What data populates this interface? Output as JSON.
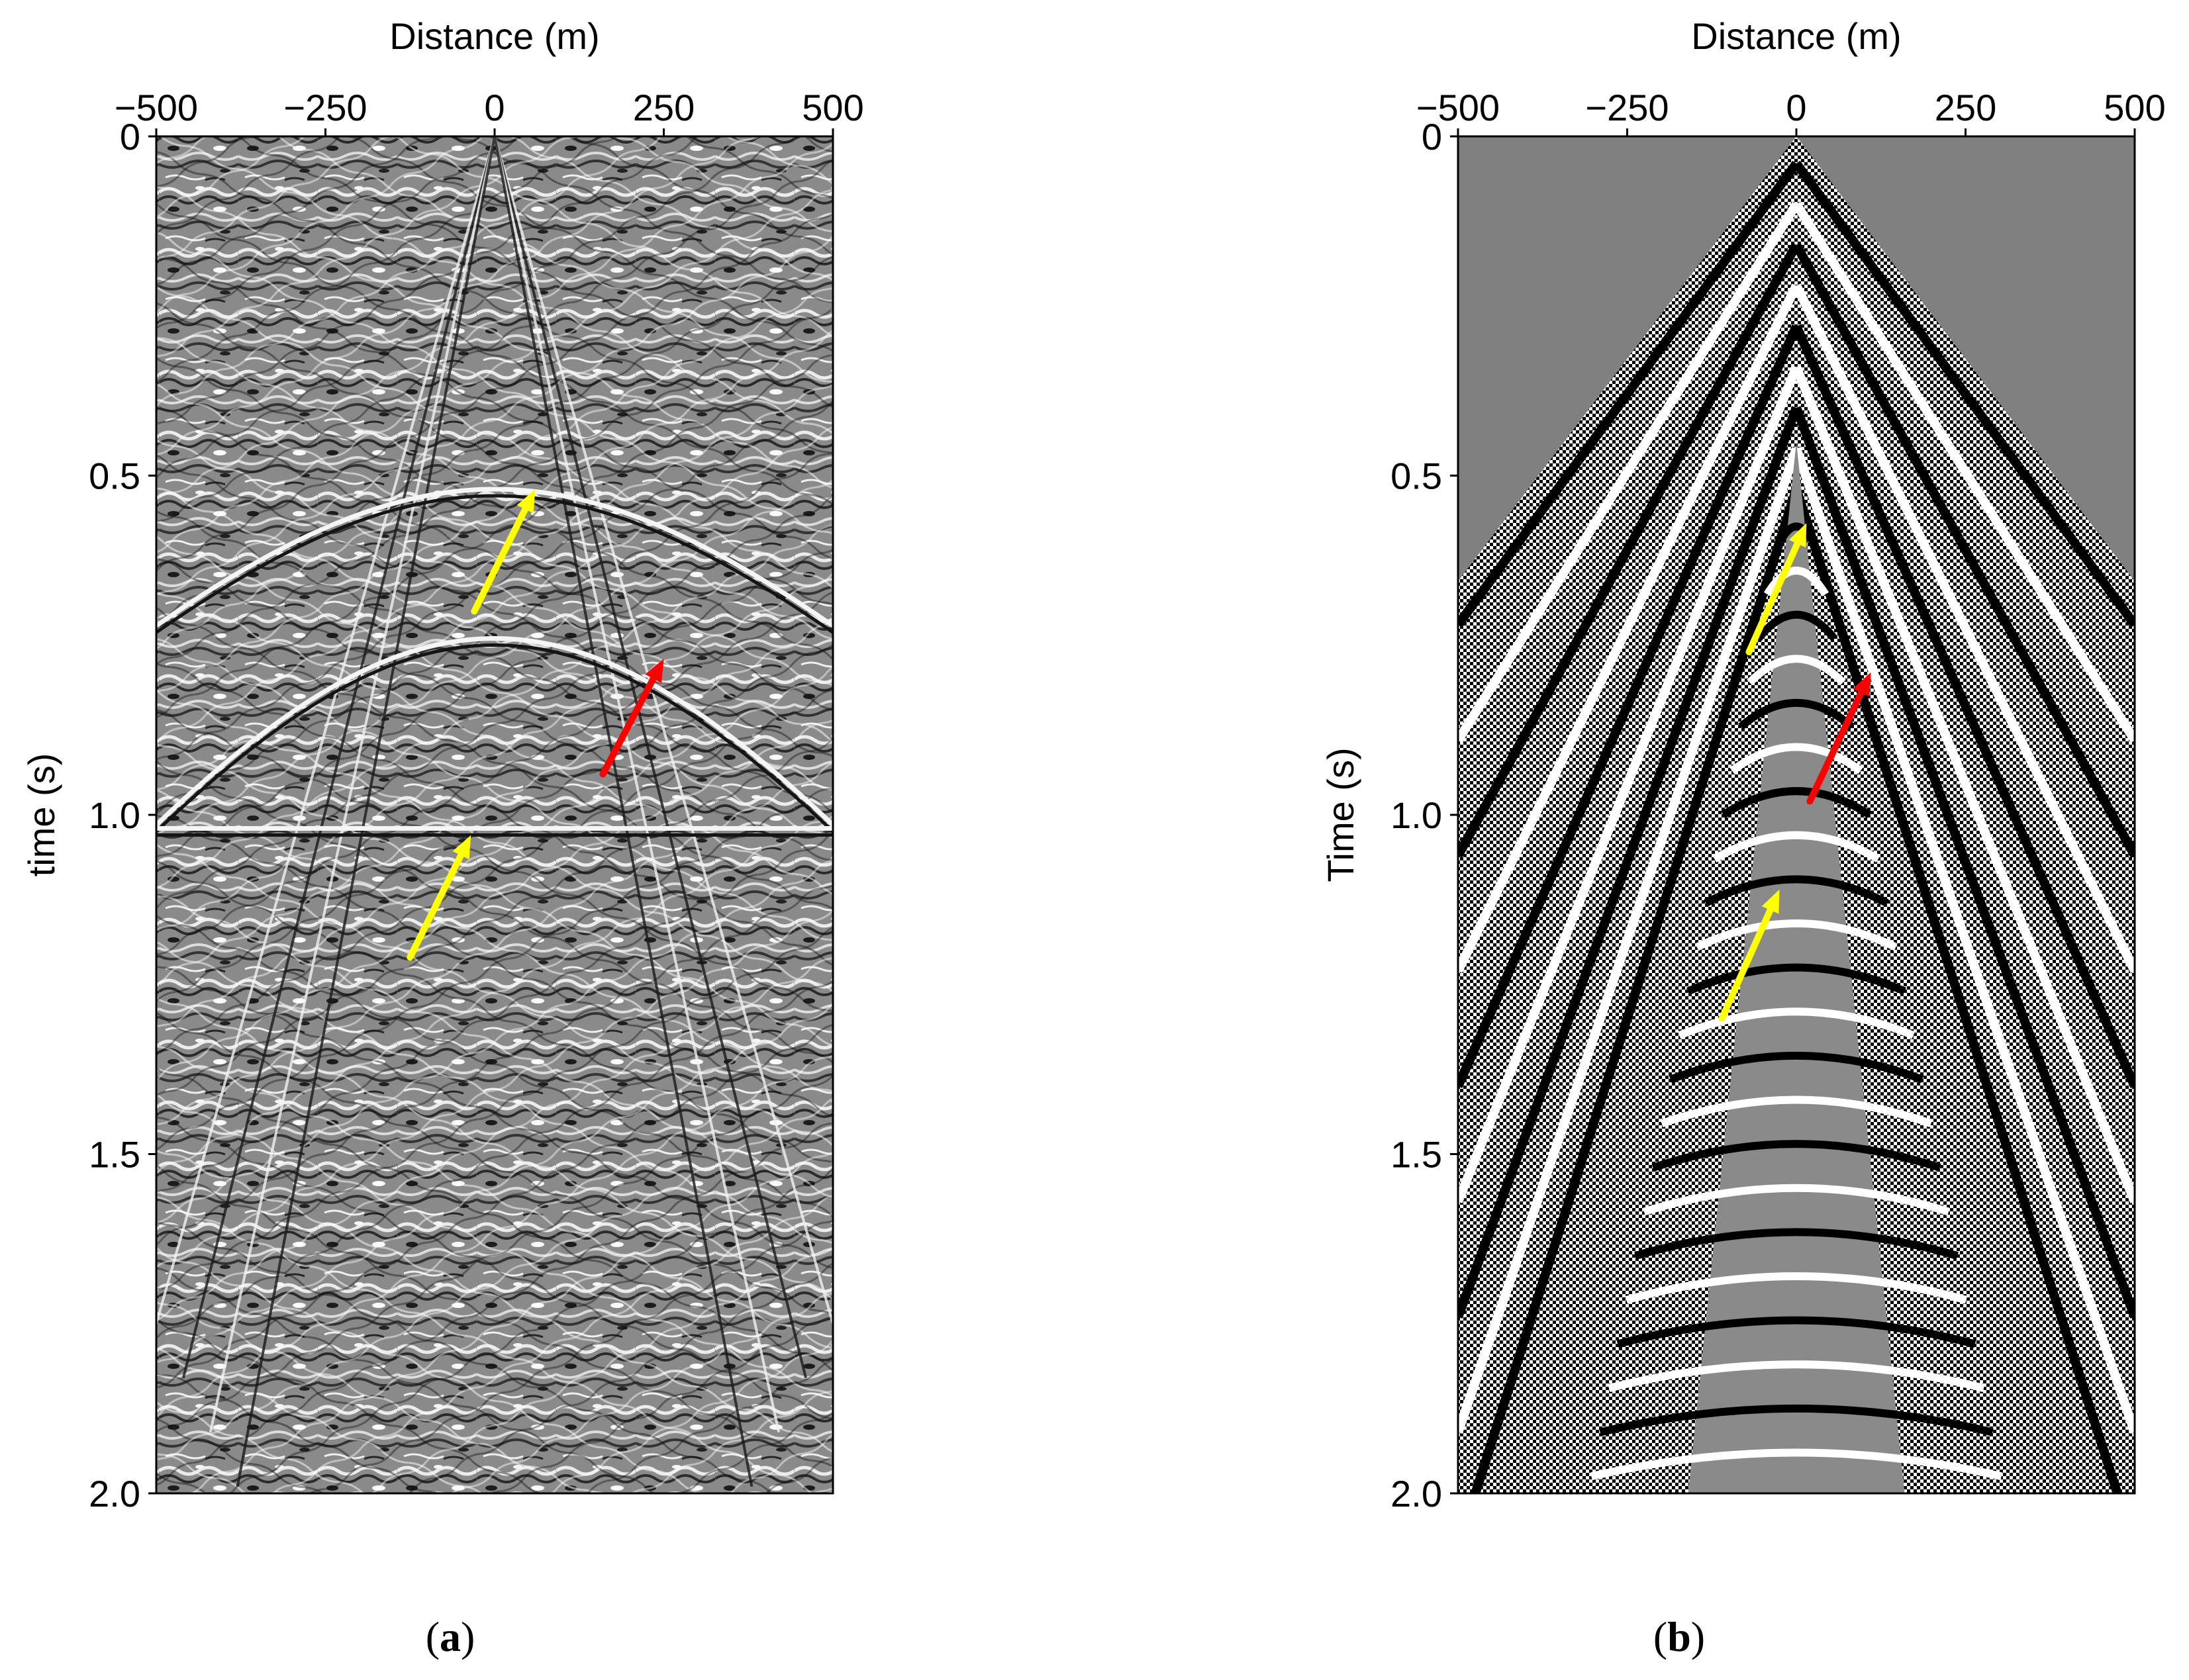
{
  "chart_data": [
    {
      "type": "heatmap",
      "panel_label_open": "(",
      "panel_label_letter": "a",
      "panel_label_close": ")",
      "xlabel": "Distance (m)",
      "ylabel": "time (s)",
      "x_ticks": [
        -500,
        -250,
        0,
        250,
        500
      ],
      "x_tick_labels": [
        "−500",
        "−250",
        "0",
        "250",
        "500"
      ],
      "y_ticks": [
        0,
        0.5,
        1.0,
        1.5,
        2.0
      ],
      "y_tick_labels": [
        "0",
        "0.5",
        "1.0",
        "1.5",
        "2.0"
      ],
      "xlim": [
        -500,
        500
      ],
      "ylim": [
        0,
        2.0
      ],
      "x_axis_position": "top",
      "colormap": "grayscale",
      "arrows": [
        {
          "color": "#ffff00",
          "from": [
            -30,
            0.7
          ],
          "to": [
            60,
            0.52
          ]
        },
        {
          "color": "#ff0000",
          "from": [
            160,
            0.94
          ],
          "to": [
            250,
            0.77
          ]
        },
        {
          "color": "#ffff00",
          "from": [
            -125,
            1.21
          ],
          "to": [
            -35,
            1.03
          ]
        }
      ]
    },
    {
      "type": "heatmap",
      "panel_label_open": "(",
      "panel_label_letter": "b",
      "panel_label_close": ")",
      "xlabel": "Distance (m)",
      "ylabel": "Time (s)",
      "x_ticks": [
        -500,
        -250,
        0,
        250,
        500
      ],
      "x_tick_labels": [
        "−500",
        "−250",
        "0",
        "250",
        "500"
      ],
      "y_ticks": [
        0,
        0.5,
        1.0,
        1.5,
        2.0
      ],
      "y_tick_labels": [
        "0",
        "0.5",
        "1.0",
        "1.5",
        "2.0"
      ],
      "xlim": [
        -500,
        500
      ],
      "ylim": [
        0,
        2.0
      ],
      "x_axis_position": "top",
      "colormap": "grayscale",
      "arrows": [
        {
          "color": "#ffff00",
          "from": [
            -70,
            0.76
          ],
          "to": [
            15,
            0.57
          ]
        },
        {
          "color": "#ff0000",
          "from": [
            20,
            0.98
          ],
          "to": [
            110,
            0.79
          ]
        },
        {
          "color": "#ffff00",
          "from": [
            -110,
            1.3
          ],
          "to": [
            -25,
            1.11
          ]
        }
      ]
    }
  ]
}
